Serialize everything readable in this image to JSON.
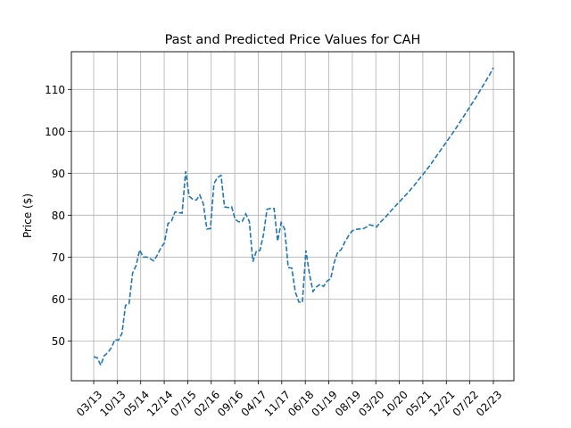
{
  "chart_data": {
    "type": "line",
    "title": "Past and Predicted Price Values for CAH",
    "xlabel": "",
    "ylabel": "Price ($)",
    "x_ticks": [
      "03/13",
      "10/13",
      "05/14",
      "12/14",
      "07/15",
      "02/16",
      "09/16",
      "04/17",
      "11/17",
      "06/18",
      "01/19",
      "08/19",
      "03/20",
      "10/20",
      "05/21",
      "12/21",
      "07/22",
      "02/23"
    ],
    "ylim": [
      40.5,
      119
    ],
    "y_ticks": [
      50,
      60,
      70,
      80,
      90,
      100,
      110
    ],
    "grid": true,
    "series": [
      {
        "line_style": "dashed",
        "color": "#1f77b4",
        "values": [
          46.2,
          46.0,
          44.2,
          46.5,
          47.2,
          48.4,
          50.3,
          50.2,
          51.8,
          58.5,
          58.9,
          66.2,
          68.0,
          71.7,
          70.0,
          70.0,
          69.6,
          69.1,
          70.5,
          72.2,
          73.4,
          78.0,
          78.6,
          80.8,
          80.6,
          80.5,
          90.5,
          84.5,
          83.8,
          83.6,
          84.8,
          82.7,
          76.7,
          76.8,
          87.5,
          89.0,
          89.5,
          82.0,
          81.8,
          82.0,
          79.0,
          78.4,
          78.5,
          80.3,
          78.5,
          68.9,
          71.4,
          71.6,
          75.3,
          81.4,
          81.6,
          81.6,
          73.8,
          78.2,
          76.7,
          67.5,
          67.4,
          61.7,
          59.3,
          59.2,
          71.6,
          66.0,
          61.8,
          62.9,
          63.5,
          63.0,
          64.3,
          64.8,
          68.7,
          71.2,
          71.8,
          73.6,
          75.0,
          76.2,
          76.6,
          76.7,
          76.7,
          77.1,
          77.7,
          77.5,
          77.2,
          78.3,
          79.1,
          80.0,
          81.0,
          81.9,
          82.8,
          83.7,
          84.6,
          85.5,
          86.5,
          87.5,
          88.6,
          89.6,
          90.7,
          91.8,
          93.0,
          94.2,
          95.4,
          96.6,
          97.8,
          99.0,
          100.2,
          101.5,
          102.8,
          104.1,
          105.4,
          106.7,
          108.0,
          109.4,
          110.8,
          112.2,
          113.6,
          115.2
        ]
      }
    ]
  }
}
